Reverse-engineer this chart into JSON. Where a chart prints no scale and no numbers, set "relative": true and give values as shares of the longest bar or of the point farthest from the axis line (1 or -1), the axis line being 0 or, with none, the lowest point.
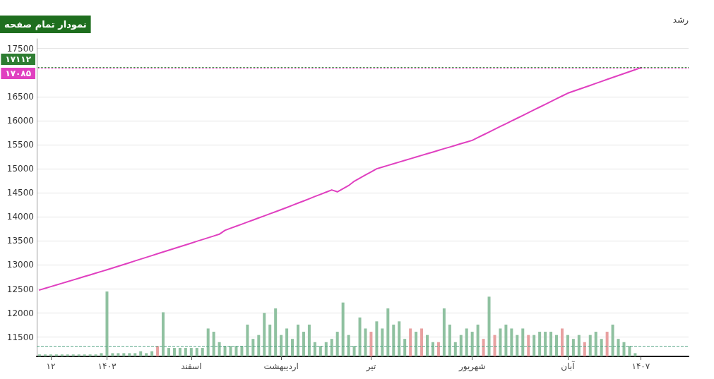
{
  "chart_data": [
    {
      "type": "line",
      "annotations": [
        "نمودار تمام صفحه",
        "رشد"
      ],
      "categories": [
        null,
        null,
        "۱۲",
        null,
        null,
        null,
        null,
        null,
        null,
        null,
        null,
        null,
        "۱۴۰۳",
        null,
        null,
        null,
        null,
        null,
        null,
        null,
        null,
        null,
        null,
        null,
        null,
        null,
        null,
        "اسفند",
        null,
        null,
        null,
        null,
        null,
        null,
        null,
        null,
        null,
        null,
        null,
        null,
        null,
        null,
        null,
        "اردیبهشت",
        null,
        null,
        null,
        null,
        null,
        null,
        null,
        null,
        null,
        null,
        null,
        null,
        null,
        null,
        null,
        "تیر",
        null,
        null,
        null,
        null,
        null,
        null,
        null,
        null,
        null,
        null,
        null,
        null,
        null,
        null,
        null,
        null,
        null,
        "شهریور",
        null,
        null,
        null,
        null,
        null,
        null,
        null,
        null,
        null,
        null,
        null,
        null,
        null,
        null,
        null,
        null,
        "آبان",
        null,
        null,
        null,
        null,
        null,
        null,
        null,
        null,
        null,
        null,
        null,
        null,
        "۱۴۰۷",
        null,
        null,
        null,
        null,
        null,
        null,
        null,
        null
      ],
      "series": [
        {
          "color": "#e040c0",
          "values": [
            12480,
            12515,
            12550,
            12585,
            12620,
            12655,
            12690,
            12725,
            12760,
            12795,
            12830,
            12865,
            12900,
            12937,
            12974,
            13011,
            13048,
            13085,
            13122,
            13159,
            13196,
            13233,
            13270,
            13307,
            13344,
            13381,
            13418,
            13455,
            13492,
            13529,
            13566,
            13603,
            13640,
            13720,
            13763,
            13806,
            13849,
            13892,
            13935,
            13978,
            14021,
            14064,
            14107,
            14150,
            14195,
            14240,
            14286,
            14331,
            14377,
            14423,
            14468,
            14514,
            14560,
            14520,
            14585,
            14650,
            14740,
            14805,
            14870,
            14935,
            15000,
            15035,
            15069,
            15104,
            15139,
            15174,
            15208,
            15243,
            15278,
            15312,
            15347,
            15382,
            15417,
            15451,
            15486,
            15521,
            15555,
            15590,
            15648,
            15705,
            15763,
            15820,
            15878,
            15935,
            15993,
            16050,
            16108,
            16166,
            16223,
            16281,
            16339,
            16397,
            16454,
            16512,
            16570,
            16611,
            16652,
            16692,
            16733,
            16774,
            16815,
            16856,
            16896,
            16937,
            16978,
            17019,
            17059,
            17100,
            null,
            null,
            null,
            null,
            null,
            null,
            null,
            null
          ]
        }
      ],
      "ylim": [
        11100,
        17700
      ],
      "yticks": [
        11500,
        12000,
        12500,
        13000,
        13500,
        14000,
        14500,
        15000,
        15500,
        16000,
        16500,
        17500
      ],
      "grid": "y",
      "marker": "none",
      "line_style": "solid",
      "ref_lines": [
        {
          "axis": "y",
          "value": 17112,
          "label": "۱۷۱۱۲",
          "color": "#2e7d32",
          "line_style": "dotted"
        },
        {
          "axis": "y",
          "value": 17085,
          "label": "۱۷۰۸۵",
          "color": "#e040c0",
          "line_style": "dotted"
        }
      ]
    },
    {
      "type": "bar",
      "relative": true,
      "categories": [
        null,
        null,
        null,
        null,
        null,
        null,
        null,
        null,
        null,
        null,
        null,
        null,
        null,
        null,
        null,
        null,
        null,
        null,
        null,
        null,
        null,
        null,
        null,
        null,
        null,
        null,
        null,
        null,
        null,
        null,
        null,
        null,
        null,
        null,
        null,
        null,
        null,
        null,
        null,
        null,
        null,
        null,
        null,
        null,
        null,
        null,
        null,
        null,
        null,
        null,
        null,
        null,
        null,
        null,
        null,
        null,
        null,
        null,
        null,
        null,
        null,
        null,
        null,
        null,
        null,
        null,
        null,
        null,
        null,
        null,
        null,
        null,
        null,
        null,
        null,
        null,
        null,
        null,
        null,
        null,
        null,
        null,
        null,
        null,
        null,
        null,
        null,
        null,
        null,
        null,
        null,
        null,
        null,
        null,
        null,
        null,
        null,
        null,
        null,
        null,
        null,
        null,
        null,
        null,
        null,
        null,
        null,
        null,
        null,
        null,
        null,
        null,
        null,
        null,
        null,
        null
      ],
      "values": [
        0.03,
        0.03,
        0.03,
        0.03,
        0.03,
        0.03,
        0.03,
        0.03,
        0.03,
        0.03,
        0.03,
        0.05,
        1,
        0.05,
        0.05,
        0.05,
        0.05,
        0.05,
        0.08,
        0.05,
        0.08,
        0.16,
        0.68,
        0.13,
        0.13,
        0.13,
        0.13,
        0.13,
        0.13,
        0.13,
        0.43,
        0.38,
        0.22,
        0.16,
        0.16,
        0.16,
        0.16,
        0.49,
        0.27,
        0.33,
        0.67,
        0.49,
        0.74,
        0.33,
        0.43,
        0.27,
        0.49,
        0.38,
        0.49,
        0.22,
        0.16,
        0.22,
        0.27,
        0.38,
        0.83,
        0.33,
        0.16,
        0.6,
        0.43,
        0.38,
        0.54,
        0.43,
        0.74,
        0.49,
        0.54,
        0.27,
        0.43,
        0.38,
        0.43,
        0.33,
        0.22,
        0.22,
        0.74,
        0.49,
        0.22,
        0.33,
        0.43,
        0.38,
        0.49,
        0.27,
        0.92,
        0.33,
        0.43,
        0.49,
        0.43,
        0.33,
        0.43,
        0.33,
        0.33,
        0.38,
        0.38,
        0.38,
        0.33,
        0.43,
        0.33,
        0.27,
        0.33,
        0.22,
        0.33,
        0.38,
        0.27,
        0.38,
        0.49,
        0.27,
        0.22,
        0.16,
        0.05,
        null,
        null,
        null,
        null,
        null,
        null,
        null,
        null,
        null
      ],
      "colors": [
        "#8fc1a0",
        "#8fc1a0",
        "#8fc1a0",
        "#8fc1a0",
        "#8fc1a0",
        "#8fc1a0",
        "#8fc1a0",
        "#8fc1a0",
        "#8fc1a0",
        "#8fc1a0",
        "#8fc1a0",
        "#8fc1a0",
        "#8fc1a0",
        "#8fc1a0",
        "#8fc1a0",
        "#8fc1a0",
        "#8fc1a0",
        "#8fc1a0",
        "#8fc1a0",
        "#8fc1a0",
        "#8fc1a0",
        "#e8a0a0",
        "#8fc1a0",
        "#8fc1a0",
        "#8fc1a0",
        "#8fc1a0",
        "#8fc1a0",
        "#8fc1a0",
        "#8fc1a0",
        "#8fc1a0",
        "#8fc1a0",
        "#8fc1a0",
        "#8fc1a0",
        "#8fc1a0",
        "#8fc1a0",
        "#8fc1a0",
        "#8fc1a0",
        "#8fc1a0",
        "#8fc1a0",
        "#8fc1a0",
        "#8fc1a0",
        "#8fc1a0",
        "#8fc1a0",
        "#8fc1a0",
        "#8fc1a0",
        "#8fc1a0",
        "#8fc1a0",
        "#8fc1a0",
        "#8fc1a0",
        "#8fc1a0",
        "#8fc1a0",
        "#8fc1a0",
        "#8fc1a0",
        "#8fc1a0",
        "#8fc1a0",
        "#8fc1a0",
        "#8fc1a0",
        "#8fc1a0",
        "#8fc1a0",
        "#e8a0a0",
        "#8fc1a0",
        "#8fc1a0",
        "#8fc1a0",
        "#8fc1a0",
        "#8fc1a0",
        "#8fc1a0",
        "#e8a0a0",
        "#8fc1a0",
        "#e8a0a0",
        "#8fc1a0",
        "#8fc1a0",
        "#e8a0a0",
        "#8fc1a0",
        "#8fc1a0",
        "#8fc1a0",
        "#8fc1a0",
        "#8fc1a0",
        "#8fc1a0",
        "#8fc1a0",
        "#e8a0a0",
        "#8fc1a0",
        "#e8a0a0",
        "#8fc1a0",
        "#8fc1a0",
        "#8fc1a0",
        "#8fc1a0",
        "#8fc1a0",
        "#e8a0a0",
        "#8fc1a0",
        "#8fc1a0",
        "#8fc1a0",
        "#8fc1a0",
        "#8fc1a0",
        "#e8a0a0",
        "#8fc1a0",
        "#8fc1a0",
        "#8fc1a0",
        "#e8a0a0",
        "#8fc1a0",
        "#8fc1a0",
        "#8fc1a0",
        "#e8a0a0",
        "#8fc1a0",
        "#8fc1a0",
        "#8fc1a0",
        "#8fc1a0",
        "#8fc1a0",
        "#8fc1a0",
        "#8fc1a0",
        "#8fc1a0",
        "#8fc1a0",
        "#8fc1a0",
        "#8fc1a0",
        "#8fc1a0",
        "#8fc1a0",
        "#8fc1a0"
      ],
      "ref_lines": [
        {
          "axis": "y",
          "value": 0.16,
          "color": "#5aa88a",
          "line_style": "dashed"
        }
      ]
    }
  ]
}
